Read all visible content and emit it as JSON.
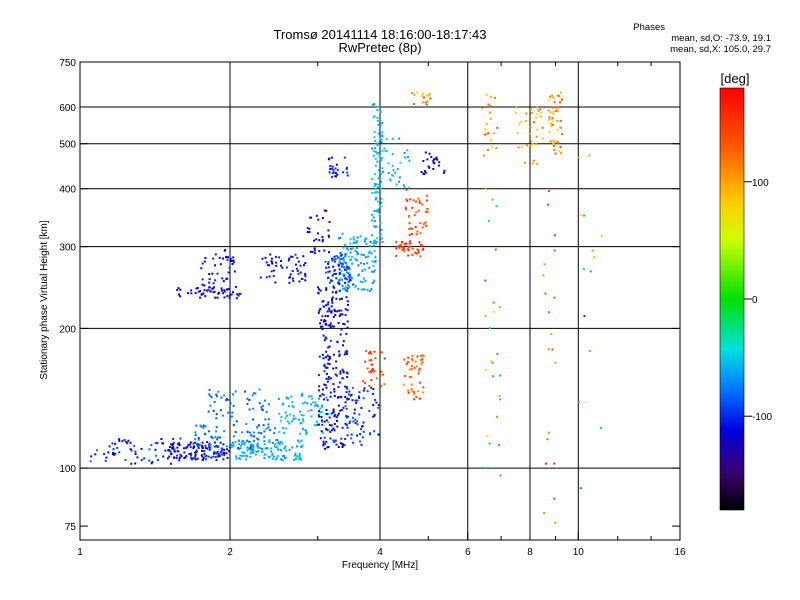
{
  "header": {
    "title_line1": "Tromsø 20141114 18:16:00-18:17:43",
    "title_line2": "RwPretec (8p)"
  },
  "stats": {
    "heading": "Phases",
    "line_o": "mean, sd,O: -73.9, 19.1",
    "line_x": "mean, sd,X: 105.0, 29.7"
  },
  "colorbar": {
    "unit": "[deg]",
    "range": [
      -180,
      180
    ],
    "ticks": [
      {
        "value": 100,
        "label": "100"
      },
      {
        "value": 0,
        "label": "0"
      },
      {
        "value": -100,
        "label": "-100"
      }
    ]
  },
  "chart_data": {
    "type": "scatter",
    "title": "Tromsø 20141114 18:16:00-18:17:43",
    "subtitle": "RwPretec (8p)",
    "xlabel": "Frequency [MHz]",
    "ylabel": "Stationary phase Virtual Height [km]",
    "x_scale": "log",
    "y_scale": "log",
    "xlim": [
      1,
      16
    ],
    "ylim": [
      70,
      750
    ],
    "x_ticks": [
      {
        "value": 1,
        "label": "1"
      },
      {
        "value": 2,
        "label": "2"
      },
      {
        "value": 4,
        "label": "4"
      },
      {
        "value": 6,
        "label": "6"
      },
      {
        "value": 8,
        "label": "8"
      },
      {
        "value": 10,
        "label": "10"
      },
      {
        "value": 16,
        "label": "16"
      }
    ],
    "y_ticks": [
      {
        "value": 750,
        "label": "750"
      },
      {
        "value": 600,
        "label": "600"
      },
      {
        "value": 500,
        "label": "500"
      },
      {
        "value": 400,
        "label": "400"
      },
      {
        "value": 300,
        "label": "300"
      },
      {
        "value": 200,
        "label": "200"
      },
      {
        "value": 100,
        "label": "100"
      },
      {
        "value": 75,
        "label": "75"
      }
    ],
    "grid_x": [
      2,
      4,
      6,
      8,
      10
    ],
    "grid_y": [
      100,
      200,
      300,
      400,
      500,
      600
    ],
    "color_by": "phase (deg)",
    "clusters": [
      {
        "x": [
          1.05,
          1.6
        ],
        "y": [
          102,
          116
        ],
        "phase": [
          -130,
          -80
        ],
        "n": 70
      },
      {
        "x": [
          1.5,
          2.0
        ],
        "y": [
          104,
          114
        ],
        "phase": [
          -140,
          -90
        ],
        "n": 120
      },
      {
        "x": [
          2.0,
          2.8
        ],
        "y": [
          104,
          115
        ],
        "phase": [
          -70,
          -50
        ],
        "n": 110
      },
      {
        "x": [
          1.7,
          2.5
        ],
        "y": [
          110,
          125
        ],
        "phase": [
          -95,
          -60
        ],
        "n": 80
      },
      {
        "x": [
          2.5,
          3.2
        ],
        "y": [
          118,
          145
        ],
        "phase": [
          -70,
          -45
        ],
        "n": 80
      },
      {
        "x": [
          1.8,
          2.4
        ],
        "y": [
          126,
          148
        ],
        "phase": [
          -100,
          -65
        ],
        "n": 50
      },
      {
        "x": [
          3.0,
          3.45
        ],
        "y": [
          110,
          250
        ],
        "phase": [
          -140,
          -95
        ],
        "n": 240
      },
      {
        "x": [
          3.4,
          4.0
        ],
        "y": [
          112,
          150
        ],
        "phase": [
          -120,
          -80
        ],
        "n": 70
      },
      {
        "x": [
          3.1,
          3.5
        ],
        "y": [
          250,
          290
        ],
        "phase": [
          -120,
          -80
        ],
        "n": 70
      },
      {
        "x": [
          3.3,
          3.95
        ],
        "y": [
          240,
          320
        ],
        "phase": [
          -80,
          -45
        ],
        "n": 120
      },
      {
        "x": [
          1.55,
          2.1
        ],
        "y": [
          232,
          246
        ],
        "phase": [
          -135,
          -100
        ],
        "n": 50
      },
      {
        "x": [
          1.75,
          2.05
        ],
        "y": [
          240,
          295
        ],
        "phase": [
          -125,
          -95
        ],
        "n": 45
      },
      {
        "x": [
          2.3,
          2.85
        ],
        "y": [
          250,
          290
        ],
        "phase": [
          -125,
          -95
        ],
        "n": 55
      },
      {
        "x": [
          2.85,
          3.2
        ],
        "y": [
          290,
          360
        ],
        "phase": [
          -140,
          -100
        ],
        "n": 30
      },
      {
        "x": [
          3.15,
          3.45
        ],
        "y": [
          420,
          470
        ],
        "phase": [
          -120,
          -90
        ],
        "n": 25
      },
      {
        "x": [
          3.85,
          4.05
        ],
        "y": [
          300,
          620
        ],
        "phase": [
          -70,
          -45
        ],
        "n": 90
      },
      {
        "x": [
          4.0,
          4.6
        ],
        "y": [
          400,
          520
        ],
        "phase": [
          -70,
          -45
        ],
        "n": 35
      },
      {
        "x": [
          4.3,
          4.9
        ],
        "y": [
          285,
          310
        ],
        "phase": [
          130,
          165
        ],
        "n": 40
      },
      {
        "x": [
          4.5,
          5.0
        ],
        "y": [
          310,
          400
        ],
        "phase": [
          120,
          160
        ],
        "n": 40
      },
      {
        "x": [
          4.4,
          4.9
        ],
        "y": [
          140,
          175
        ],
        "phase": [
          100,
          150
        ],
        "n": 45
      },
      {
        "x": [
          3.7,
          4.1
        ],
        "y": [
          150,
          180
        ],
        "phase": [
          120,
          160
        ],
        "n": 30
      },
      {
        "x": [
          4.8,
          5.5
        ],
        "y": [
          430,
          480
        ],
        "phase": [
          -140,
          -110
        ],
        "n": 25
      },
      {
        "x": [
          4.6,
          5.1
        ],
        "y": [
          600,
          650
        ],
        "phase": [
          60,
          150
        ],
        "n": 15
      },
      {
        "x": [
          6.4,
          6.9
        ],
        "y": [
          470,
          640
        ],
        "phase": [
          60,
          140
        ],
        "n": 20
      },
      {
        "x": [
          6.5,
          7.0
        ],
        "y": [
          95,
          400
        ],
        "phase": [
          -60,
          150
        ],
        "n": 25
      },
      {
        "x": [
          7.5,
          8.5
        ],
        "y": [
          450,
          600
        ],
        "phase": [
          70,
          130
        ],
        "n": 35
      },
      {
        "x": [
          8.7,
          9.3
        ],
        "y": [
          470,
          650
        ],
        "phase": [
          60,
          140
        ],
        "n": 50
      },
      {
        "x": [
          8.5,
          9.0
        ],
        "y": [
          75,
          400
        ],
        "phase": [
          100,
          160
        ],
        "n": 20
      },
      {
        "x": [
          10.0,
          11.2
        ],
        "y": [
          80,
          540
        ],
        "phase": [
          -100,
          120
        ],
        "n": 14
      }
    ]
  }
}
